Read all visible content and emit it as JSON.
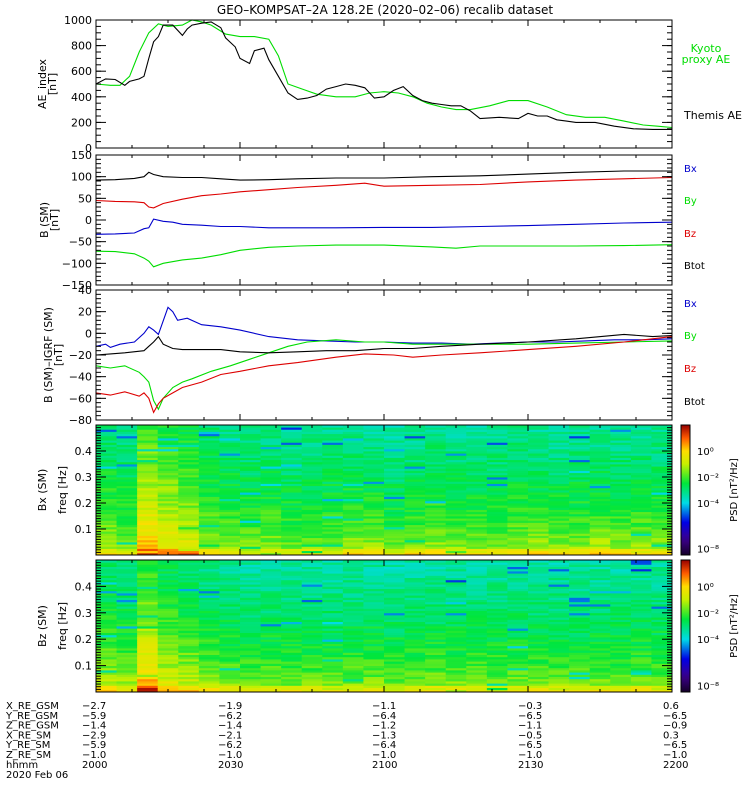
{
  "title": "GEO–KOMPSAT–2A 128.2E (2020–02–06) recalib dataset",
  "colors": {
    "black": "#000000",
    "green": "#00dd00",
    "blue": "#0000cc",
    "red": "#dd0000"
  },
  "chart_data": [
    {
      "type": "line",
      "ylabel": "AE_index [nT]",
      "ylabel_main": "AE_index",
      "ylabel_unit": "[nT]",
      "ylim": [
        0,
        1000
      ],
      "yticks": [
        "0",
        "200",
        "400",
        "600",
        "800",
        "1000"
      ],
      "xlim": [
        0,
        120
      ],
      "series": [
        {
          "name": "Kyoto proxy AE",
          "label_line1": "Kyoto",
          "label_line2": "proxy AE",
          "color": "#00dd00",
          "x": [
            0,
            3,
            5,
            7,
            9,
            11,
            13,
            15,
            18,
            20,
            22,
            24,
            27,
            30,
            33,
            36,
            38,
            40,
            43,
            46,
            50,
            54,
            57,
            60,
            63,
            66,
            69,
            72,
            75,
            78,
            82,
            86,
            90,
            94,
            98,
            102,
            106,
            110,
            114,
            117,
            120
          ],
          "y": [
            500,
            490,
            490,
            560,
            750,
            900,
            970,
            950,
            960,
            1000,
            985,
            960,
            890,
            870,
            870,
            850,
            720,
            500,
            460,
            420,
            400,
            400,
            430,
            440,
            430,
            400,
            350,
            320,
            300,
            300,
            330,
            370,
            370,
            320,
            260,
            240,
            240,
            210,
            180,
            170,
            160
          ]
        },
        {
          "name": "Themis AE",
          "label": "Themis AE",
          "color": "#000000",
          "x": [
            0,
            2,
            4,
            6,
            7,
            9,
            10,
            11,
            12,
            13,
            14,
            16,
            18,
            19,
            20,
            22,
            24,
            26,
            27,
            29,
            30,
            32,
            33,
            35,
            36,
            38,
            40,
            42,
            44,
            46,
            48,
            50,
            52,
            54,
            56,
            58,
            60,
            62,
            64,
            66,
            68,
            70,
            72,
            74,
            76,
            78,
            80,
            84,
            88,
            90,
            92,
            94,
            96,
            98,
            100,
            104,
            108,
            112,
            116,
            120
          ],
          "y": [
            500,
            540,
            535,
            490,
            520,
            540,
            560,
            700,
            830,
            870,
            960,
            960,
            880,
            930,
            960,
            975,
            985,
            940,
            860,
            790,
            700,
            660,
            760,
            780,
            690,
            560,
            430,
            380,
            390,
            410,
            460,
            480,
            500,
            490,
            470,
            390,
            400,
            450,
            480,
            410,
            370,
            350,
            340,
            330,
            330,
            290,
            230,
            240,
            230,
            270,
            250,
            250,
            220,
            210,
            200,
            200,
            170,
            150,
            145,
            145
          ]
        }
      ]
    },
    {
      "type": "line",
      "ylabel": "B (SM) [nT]",
      "ylabel_main": "B (SM)",
      "ylabel_unit": "[nT]",
      "ylim": [
        -150,
        150
      ],
      "yticks": [
        "−150",
        "−100",
        "−50",
        "0",
        "50",
        "100",
        "150"
      ],
      "xlim": [
        0,
        120
      ],
      "series": [
        {
          "name": "Bx",
          "color": "#0000cc",
          "x": [
            0,
            4,
            8,
            10,
            11,
            12,
            14,
            16,
            18,
            22,
            26,
            30,
            36,
            42,
            50,
            60,
            70,
            80,
            90,
            100,
            110,
            115,
            120
          ],
          "y": [
            -33,
            -32,
            -30,
            -20,
            -18,
            2,
            -3,
            -5,
            -10,
            -12,
            -15,
            -15,
            -18,
            -18,
            -18,
            -17,
            -17,
            -15,
            -13,
            -10,
            -7,
            -6,
            -5
          ]
        },
        {
          "name": "By",
          "color": "#00dd00",
          "x": [
            0,
            4,
            8,
            10,
            11,
            12,
            14,
            18,
            22,
            26,
            30,
            36,
            42,
            50,
            60,
            70,
            75,
            80,
            90,
            100,
            110,
            120
          ],
          "y": [
            -72,
            -73,
            -78,
            -88,
            -95,
            -108,
            -100,
            -92,
            -88,
            -80,
            -70,
            -63,
            -60,
            -58,
            -58,
            -62,
            -65,
            -60,
            -60,
            -60,
            -59,
            -57
          ]
        },
        {
          "name": "Bz",
          "color": "#dd0000",
          "x": [
            0,
            4,
            8,
            10,
            11,
            12,
            14,
            18,
            22,
            26,
            30,
            36,
            42,
            50,
            56,
            60,
            70,
            80,
            90,
            100,
            110,
            120
          ],
          "y": [
            45,
            43,
            42,
            40,
            30,
            28,
            38,
            48,
            56,
            60,
            65,
            70,
            75,
            80,
            85,
            78,
            80,
            82,
            88,
            92,
            95,
            98
          ]
        },
        {
          "name": "Btot",
          "color": "#000000",
          "x": [
            0,
            4,
            8,
            10,
            11,
            12,
            14,
            18,
            22,
            26,
            30,
            36,
            42,
            50,
            60,
            70,
            80,
            90,
            100,
            110,
            120
          ],
          "y": [
            92,
            93,
            96,
            100,
            110,
            105,
            100,
            98,
            98,
            95,
            92,
            93,
            95,
            97,
            97,
            100,
            102,
            106,
            110,
            113,
            113
          ]
        }
      ]
    },
    {
      "type": "line",
      "ylabel": "B (SM)–IGRF (SM) [nT]",
      "ylabel_main": "B (SM)–IGRF (SM)",
      "ylabel_unit": "[nT]",
      "ylim": [
        -80,
        40
      ],
      "yticks": [
        "−80",
        "−60",
        "−40",
        "−20",
        "0",
        "20",
        "40"
      ],
      "xlim": [
        0,
        120
      ],
      "series": [
        {
          "name": "Bx",
          "color": "#0000cc",
          "x": [
            0,
            2,
            3,
            5,
            8,
            10,
            11,
            12,
            13,
            15,
            16,
            17,
            19,
            22,
            26,
            30,
            36,
            42,
            48,
            54,
            60,
            66,
            72,
            78,
            84,
            90,
            96,
            102,
            108,
            114,
            120
          ],
          "y": [
            -12,
            -10,
            -13,
            -10,
            -8,
            0,
            6,
            3,
            -1,
            24,
            20,
            12,
            14,
            8,
            6,
            3,
            -3,
            -6,
            -7,
            -8,
            -8,
            -9,
            -9,
            -10,
            -9,
            -8,
            -8,
            -7,
            -6,
            -6,
            -5
          ]
        },
        {
          "name": "By",
          "color": "#00dd00",
          "x": [
            0,
            3,
            6,
            9,
            10,
            11,
            12,
            13,
            14,
            16,
            18,
            20,
            24,
            28,
            32,
            36,
            40,
            44,
            50,
            56,
            60,
            66,
            72,
            80,
            90,
            100,
            110,
            120
          ],
          "y": [
            -30,
            -32,
            -30,
            -36,
            -40,
            -45,
            -62,
            -70,
            -60,
            -50,
            -45,
            -42,
            -35,
            -30,
            -24,
            -18,
            -12,
            -8,
            -6,
            -8,
            -8,
            -10,
            -10,
            -10,
            -10,
            -9,
            -8,
            -7
          ]
        },
        {
          "name": "Bz",
          "color": "#dd0000",
          "x": [
            0,
            3,
            6,
            9,
            10,
            11,
            12,
            13,
            14,
            16,
            18,
            22,
            26,
            30,
            36,
            42,
            50,
            56,
            62,
            66,
            72,
            80,
            90,
            100,
            110,
            120
          ],
          "y": [
            -55,
            -57,
            -54,
            -58,
            -55,
            -60,
            -73,
            -65,
            -60,
            -55,
            -50,
            -45,
            -38,
            -35,
            -30,
            -27,
            -22,
            -19,
            -20,
            -22,
            -20,
            -18,
            -15,
            -12,
            -8,
            -3
          ]
        },
        {
          "name": "Btot",
          "color": "#000000",
          "x": [
            0,
            3,
            6,
            10,
            11,
            12,
            13,
            14,
            16,
            18,
            22,
            26,
            30,
            36,
            42,
            48,
            54,
            60,
            66,
            72,
            80,
            90,
            100,
            110,
            116,
            120
          ],
          "y": [
            -20,
            -19,
            -18,
            -16,
            -12,
            -8,
            -3,
            -10,
            -14,
            -15,
            -15,
            -15,
            -17,
            -18,
            -17,
            -16,
            -16,
            -14,
            -14,
            -12,
            -10,
            -8,
            -5,
            -1,
            -3,
            -2
          ]
        }
      ]
    },
    {
      "type": "heatmap",
      "ylabel": "Bx (SM) freq [Hz]",
      "ylabel_main": "Bx (SM)",
      "ylabel_unit": "freq [Hz]",
      "ylim": [
        0,
        0.5
      ],
      "yticks": [
        "0.1",
        "0.2",
        "0.3",
        "0.4"
      ],
      "xlim": [
        0,
        120
      ],
      "colorbar": {
        "label": "PSD [nT²/Hz]",
        "ticks": [
          "10⁰",
          "10⁻²",
          "10⁻⁴",
          "10⁻⁸"
        ],
        "log_range": [
          -8,
          2
        ]
      },
      "columns": 28,
      "column_log_psd_low_freq": [
        -0.5,
        -0.8,
        1.2,
        0.6,
        0.2,
        -0.6,
        -0.8,
        -1.0,
        -0.8,
        -1.0,
        -1.0,
        -1.0,
        -0.6,
        -0.5,
        -1.0,
        -0.8,
        -0.6,
        -0.8,
        -0.9,
        -0.9,
        -0.6,
        -0.3,
        -0.6,
        -0.7,
        -0.4,
        -0.6,
        -0.6,
        -0.6
      ],
      "column_log_psd_high_freq": [
        -3.0,
        -3.2,
        -2.0,
        -2.3,
        -2.6,
        -3.0,
        -3.1,
        -3.2,
        -3.2,
        -3.3,
        -3.3,
        -3.2,
        -3.2,
        -3.3,
        -3.4,
        -3.3,
        -3.2,
        -3.3,
        -3.3,
        -3.3,
        -3.2,
        -3.4,
        -3.4,
        -3.3,
        -3.3,
        -3.3,
        -3.3,
        -3.3
      ]
    },
    {
      "type": "heatmap",
      "ylabel": "Bz (SM) freq [Hz]",
      "ylabel_main": "Bz (SM)",
      "ylabel_unit": "freq [Hz]",
      "ylim": [
        0,
        0.5
      ],
      "yticks": [
        "0.1",
        "0.2",
        "0.3",
        "0.4"
      ],
      "xlim": [
        0,
        120
      ],
      "colorbar": {
        "label": "PSD [nT²/Hz]",
        "ticks": [
          "10⁰",
          "10⁻²",
          "10⁻⁴",
          "10⁻⁸"
        ],
        "log_range": [
          -8,
          2
        ]
      },
      "columns": 28,
      "column_log_psd_low_freq": [
        -0.4,
        -0.6,
        1.4,
        0.2,
        -0.2,
        -0.6,
        -0.8,
        -1.0,
        -0.9,
        -1.0,
        -1.0,
        -1.0,
        -0.9,
        -0.8,
        -1.0,
        -0.9,
        -0.8,
        -0.9,
        -0.9,
        -1.0,
        -0.9,
        -0.9,
        -0.9,
        -1.0,
        -0.9,
        -1.0,
        -0.9,
        -1.0
      ],
      "column_log_psd_high_freq": [
        -3.0,
        -3.2,
        -2.2,
        -2.8,
        -3.0,
        -3.2,
        -3.3,
        -3.4,
        -3.4,
        -3.4,
        -3.4,
        -3.4,
        -3.4,
        -3.4,
        -3.5,
        -3.4,
        -3.4,
        -3.4,
        -3.4,
        -3.4,
        -3.4,
        -3.4,
        -3.4,
        -3.4,
        -3.4,
        -3.4,
        -3.4,
        -3.4
      ]
    }
  ],
  "legend_b": [
    "Bx",
    "By",
    "Bz",
    "Btot"
  ],
  "ephemeris": {
    "rows": [
      {
        "label": "X_RE_GSM",
        "values": [
          "−2.7",
          "−1.9",
          "−1.1",
          "−0.3",
          "0.6"
        ]
      },
      {
        "label": "Y_RE_GSM",
        "values": [
          "−5.9",
          "−6.2",
          "−6.4",
          "−6.5",
          "−6.5"
        ]
      },
      {
        "label": "Z_RE_GSM",
        "values": [
          "−1.4",
          "−1.4",
          "−1.2",
          "−1.1",
          "−0.9"
        ]
      },
      {
        "label": "X_RE_SM",
        "values": [
          "−2.9",
          "−2.1",
          "−1.3",
          "−0.5",
          "0.3"
        ]
      },
      {
        "label": "Y_RE_SM",
        "values": [
          "−5.9",
          "−6.2",
          "−6.4",
          "−6.5",
          "−6.5"
        ]
      },
      {
        "label": "Z_RE_SM",
        "values": [
          "−1.0",
          "−1.0",
          "−1.0",
          "−1.0",
          "−1.0"
        ]
      },
      {
        "label": "hhmm",
        "values": [
          "2000",
          "2030",
          "2100",
          "2130",
          "2200"
        ]
      }
    ],
    "date": "2020 Feb 06"
  }
}
